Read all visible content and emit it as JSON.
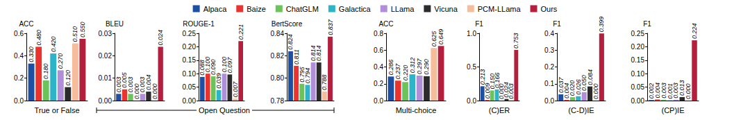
{
  "chart_data": [
    {
      "type": "bar",
      "ylabel": "ACC",
      "xlabel": "True or False",
      "categories": [
        null
      ],
      "legend": "top",
      "grid": false,
      "data_labels": true,
      "tick_labels": "y",
      "ylim": [
        0,
        0.6
      ],
      "yticks": [
        {
          "value": 0,
          "label": "0.0"
        },
        0.2,
        0.4,
        0.6
      ],
      "series": [
        {
          "name": "Alpaca",
          "color": "#1f4fa0",
          "values": [
            0.33
          ],
          "value_labels": [
            "0.330"
          ]
        },
        {
          "name": "Baize",
          "color": "#e8332e",
          "values": [
            0.48
          ],
          "value_labels": [
            "0.480"
          ]
        },
        {
          "name": "ChatGLM",
          "color": "#6cc35a",
          "values": [
            0.18
          ],
          "value_labels": [
            "0.180"
          ]
        },
        {
          "name": "Galactica",
          "color": "#2db4c8",
          "values": [
            0.42
          ],
          "value_labels": [
            "0.420"
          ]
        },
        {
          "name": "LLama",
          "color": "#b08fd8",
          "values": [
            0.27
          ],
          "value_labels": [
            "0.270"
          ]
        },
        {
          "name": "Vicuna",
          "color": "#2b2b2b",
          "values": [
            0.12
          ],
          "value_labels": [
            "0.120"
          ]
        },
        {
          "name": "PCM-LLama",
          "color": "#f6bd9c",
          "values": [
            0.51
          ],
          "value_labels": [
            "0.510"
          ]
        },
        {
          "name": "Ours",
          "color": "#b3203e",
          "values": [
            0.55
          ],
          "value_labels": [
            "0.550"
          ]
        }
      ]
    },
    {
      "type": "bar",
      "ylabel": "BLEU",
      "xlabel": "Open Question",
      "categories": [
        null
      ],
      "grid": false,
      "data_labels": true,
      "tick_labels": "y",
      "ylim": [
        0,
        0.03
      ],
      "yticks": [
        {
          "value": 0,
          "label": "0.00"
        },
        0.01,
        0.02,
        0.03
      ],
      "series": [
        {
          "name": "Alpaca",
          "color": "#1f4fa0",
          "values": [
            0.003
          ],
          "value_labels": [
            "0.003"
          ]
        },
        {
          "name": "Baize",
          "color": "#e8332e",
          "values": [
            0.005
          ],
          "value_labels": [
            "0.005"
          ]
        },
        {
          "name": "ChatGLM",
          "color": "#6cc35a",
          "values": [
            0.003
          ],
          "value_labels": [
            "0.003"
          ]
        },
        {
          "name": "Galactica",
          "color": "#2db4c8",
          "values": [
            0
          ],
          "value_labels": [
            "0.000"
          ]
        },
        {
          "name": "LLama",
          "color": "#b08fd8",
          "values": [
            0.003
          ],
          "value_labels": [
            "0.003"
          ]
        },
        {
          "name": "Vicuna",
          "color": "#2b2b2b",
          "values": [
            0.004
          ],
          "value_labels": [
            "0.004"
          ]
        },
        {
          "name": "PCM-LLama",
          "color": "#f6bd9c",
          "values": [
            0
          ],
          "value_labels": [
            "0.000"
          ]
        },
        {
          "name": "Ours",
          "color": "#b3203e",
          "values": [
            0.024
          ],
          "value_labels": [
            "0.024"
          ]
        }
      ]
    },
    {
      "type": "bar",
      "ylabel": "ROUGE-1",
      "categories": [
        null
      ],
      "grid": false,
      "data_labels": true,
      "tick_labels": "y",
      "ylim": [
        0,
        0.25
      ],
      "yticks": [
        {
          "value": 0,
          "label": "0.00"
        },
        0.05,
        {
          "value": 0.1,
          "label": "0.10"
        },
        0.15,
        {
          "value": 0.2,
          "label": "0.20"
        },
        0.25
      ],
      "series": [
        {
          "name": "Alpaca",
          "color": "#1f4fa0",
          "values": [
            0.088
          ],
          "value_labels": [
            "0.088"
          ]
        },
        {
          "name": "Baize",
          "color": "#e8332e",
          "values": [
            0.1
          ],
          "value_labels": [
            "0.100"
          ]
        },
        {
          "name": "ChatGLM",
          "color": "#6cc35a",
          "values": [
            0.09
          ],
          "value_labels": [
            "0.090"
          ]
        },
        {
          "name": "Galactica",
          "color": "#2db4c8",
          "values": [
            0.039
          ],
          "value_labels": [
            "0.039"
          ]
        },
        {
          "name": "LLama",
          "color": "#b08fd8",
          "values": [
            0.1
          ],
          "value_labels": [
            "0.100"
          ]
        },
        {
          "name": "Vicuna",
          "color": "#2b2b2b",
          "values": [
            0.097
          ],
          "value_labels": [
            "0.097"
          ]
        },
        {
          "name": "PCM-LLama",
          "color": "#f6bd9c",
          "values": [
            0.007
          ],
          "value_labels": [
            "0.007"
          ]
        },
        {
          "name": "Ours",
          "color": "#b3203e",
          "values": [
            0.221
          ],
          "value_labels": [
            "0.221"
          ]
        }
      ]
    },
    {
      "type": "bar",
      "ylabel": "BertScore",
      "categories": [
        null
      ],
      "grid": false,
      "data_labels": true,
      "tick_labels": "y",
      "ylim": [
        0.78,
        0.84
      ],
      "yticks": [
        0.78,
        {
          "value": 0.8,
          "label": "0.80"
        },
        0.82,
        0.84
      ],
      "series": [
        {
          "name": "Alpaca",
          "color": "#1f4fa0",
          "values": [
            0.824
          ],
          "value_labels": [
            "0.824"
          ]
        },
        {
          "name": "Baize",
          "color": "#e8332e",
          "values": [
            0.811
          ],
          "value_labels": [
            "0.811"
          ]
        },
        {
          "name": "ChatGLM",
          "color": "#6cc35a",
          "values": [
            0.795
          ],
          "value_labels": [
            "0.795"
          ]
        },
        {
          "name": "Galactica",
          "color": "#2db4c8",
          "values": [
            0.794
          ],
          "value_labels": [
            "0.794"
          ]
        },
        {
          "name": "LLama",
          "color": "#b08fd8",
          "values": [
            0.814
          ],
          "value_labels": [
            "0.814"
          ]
        },
        {
          "name": "Vicuna",
          "color": "#2b2b2b",
          "values": [
            0.814
          ],
          "value_labels": [
            "0.814"
          ]
        },
        {
          "name": "PCM-LLama",
          "color": "#f6bd9c",
          "values": [
            0.788
          ],
          "value_labels": [
            "0.788"
          ]
        },
        {
          "name": "Ours",
          "color": "#b3203e",
          "values": [
            0.837
          ],
          "value_labels": [
            "0.837"
          ]
        }
      ]
    },
    {
      "type": "bar",
      "ylabel": "ACC",
      "xlabel": "Multi-choice",
      "categories": [
        null
      ],
      "grid": false,
      "data_labels": true,
      "tick_labels": "y",
      "ylim": [
        0,
        0.8
      ],
      "yticks": [
        {
          "value": 0,
          "label": "0.0"
        },
        0.2,
        0.4,
        0.6,
        0.8
      ],
      "series": [
        {
          "name": "Alpaca",
          "color": "#1f4fa0",
          "values": [
            0.286
          ],
          "value_labels": [
            "0.286"
          ]
        },
        {
          "name": "Baize",
          "color": "#e8332e",
          "values": [
            0.237
          ],
          "value_labels": [
            "0.237"
          ]
        },
        {
          "name": "ChatGLM",
          "color": "#6cc35a",
          "values": [
            0.22
          ],
          "value_labels": [
            "0.220"
          ]
        },
        {
          "name": "Galactica",
          "color": "#2db4c8",
          "values": [
            0.312
          ],
          "value_labels": [
            "0.312"
          ]
        },
        {
          "name": "LLama",
          "color": "#b08fd8",
          "values": [
            0.297
          ],
          "value_labels": [
            "0.297"
          ]
        },
        {
          "name": "Vicuna",
          "color": "#2b2b2b",
          "values": [
            0.29
          ],
          "value_labels": [
            "0.290"
          ]
        },
        {
          "name": "PCM-LLama",
          "color": "#f6bd9c",
          "values": [
            0.625
          ],
          "value_labels": [
            "0.625"
          ]
        },
        {
          "name": "Ours",
          "color": "#b3203e",
          "values": [
            0.649
          ],
          "value_labels": [
            "0.649"
          ]
        }
      ]
    },
    {
      "type": "bar",
      "ylabel": "F1",
      "xlabel": "(C)ER",
      "categories": [
        null
      ],
      "grid": false,
      "data_labels": true,
      "tick_labels": "y",
      "ylim": [
        0,
        1
      ],
      "yticks": [
        {
          "value": 0,
          "label": "0.0"
        },
        0.5,
        {
          "value": 1,
          "label": "1.0"
        }
      ],
      "series": [
        {
          "name": "Alpaca",
          "color": "#1f4fa0",
          "values": [
            0.213
          ],
          "value_labels": [
            "0.213"
          ]
        },
        {
          "name": "Baize",
          "color": "#e8332e",
          "values": [
            0.009
          ],
          "value_labels": [
            "0.009"
          ]
        },
        {
          "name": "ChatGLM",
          "color": "#6cc35a",
          "values": [
            0.15
          ],
          "value_labels": [
            "0.150"
          ]
        },
        {
          "name": "Galactica",
          "color": "#2db4c8",
          "values": [
            0.166
          ],
          "value_labels": [
            "0.166"
          ]
        },
        {
          "name": "LLama",
          "color": "#b08fd8",
          "values": [
            0
          ],
          "value_labels": [
            "0.000"
          ]
        },
        {
          "name": "Vicuna",
          "color": "#2b2b2b",
          "values": [
            0.024
          ],
          "value_labels": [
            "0.024"
          ]
        },
        {
          "name": "PCM-LLama",
          "color": "#f6bd9c",
          "values": [
            0.003
          ],
          "value_labels": [
            "0.003"
          ]
        },
        {
          "name": "Ours",
          "color": "#b3203e",
          "values": [
            0.753
          ],
          "value_labels": [
            "0.753"
          ]
        }
      ]
    },
    {
      "type": "bar",
      "ylabel": "F1",
      "xlabel": "(C-D)IE",
      "categories": [
        null
      ],
      "grid": false,
      "data_labels": true,
      "tick_labels": "y",
      "ylim": [
        0,
        0.4
      ],
      "yticks": [
        {
          "value": 0,
          "label": "0.0"
        },
        0.1,
        0.2,
        0.3,
        0.4
      ],
      "series": [
        {
          "name": "Alpaca",
          "color": "#1f4fa0",
          "values": [
            0.037
          ],
          "value_labels": [
            "0.037"
          ]
        },
        {
          "name": "Baize",
          "color": "#e8332e",
          "values": [
            0.004
          ],
          "value_labels": [
            "0.004"
          ]
        },
        {
          "name": "ChatGLM",
          "color": "#6cc35a",
          "values": [
            0.02
          ],
          "value_labels": [
            "0.020"
          ]
        },
        {
          "name": "Galactica",
          "color": "#2db4c8",
          "values": [
            0.026
          ],
          "value_labels": [
            "0.026"
          ]
        },
        {
          "name": "LLama",
          "color": "#b08fd8",
          "values": [
            0.05
          ],
          "value_labels": [
            "0.050"
          ]
        },
        {
          "name": "Vicuna",
          "color": "#2b2b2b",
          "values": [
            0.084
          ],
          "value_labels": [
            "0.084"
          ]
        },
        {
          "name": "PCM-LLama",
          "color": "#f6bd9c",
          "values": [
            0
          ],
          "value_labels": [
            "0.000"
          ]
        },
        {
          "name": "Ours",
          "color": "#b3203e",
          "values": [
            0.399
          ],
          "value_labels": [
            "0.399"
          ]
        }
      ]
    },
    {
      "type": "bar",
      "ylabel": "F1",
      "xlabel": "(CP)IE",
      "categories": [
        null
      ],
      "grid": false,
      "data_labels": true,
      "tick_labels": "y",
      "ylim": [
        0,
        0.25
      ],
      "yticks": [
        {
          "value": 0,
          "label": "0.00"
        },
        0.05,
        {
          "value": 0.1,
          "label": "0.10"
        },
        0.15,
        {
          "value": 0.2,
          "label": "0.20"
        },
        0.25
      ],
      "series": [
        {
          "name": "Alpaca",
          "color": "#1f4fa0",
          "values": [
            0.002
          ],
          "value_labels": [
            "0.002"
          ]
        },
        {
          "name": "Baize",
          "color": "#e8332e",
          "values": [
            0.004
          ],
          "value_labels": [
            "0.004"
          ]
        },
        {
          "name": "ChatGLM",
          "color": "#6cc35a",
          "values": [
            0.003
          ],
          "value_labels": [
            "0.003"
          ]
        },
        {
          "name": "Galactica",
          "color": "#2db4c8",
          "values": [
            0.001
          ],
          "value_labels": [
            "0.001"
          ]
        },
        {
          "name": "LLama",
          "color": "#b08fd8",
          "values": [
            0.003
          ],
          "value_labels": [
            "0.003"
          ]
        },
        {
          "name": "Vicuna",
          "color": "#2b2b2b",
          "values": [
            0.013
          ],
          "value_labels": [
            "0.013"
          ]
        },
        {
          "name": "PCM-LLama",
          "color": "#f6bd9c",
          "values": [
            0
          ],
          "value_labels": [
            "0.000"
          ]
        },
        {
          "name": "Ours",
          "color": "#b3203e",
          "values": [
            0.224
          ],
          "value_labels": [
            "0.224"
          ]
        }
      ]
    }
  ]
}
